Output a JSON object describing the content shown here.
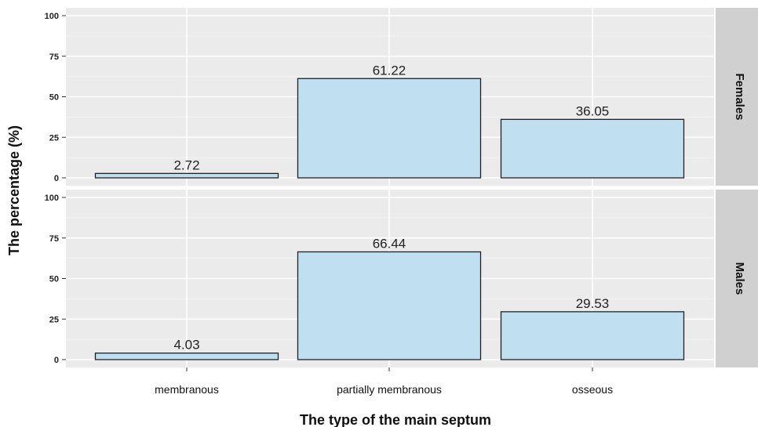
{
  "chart_data": {
    "type": "bar",
    "xlabel": "The type of the main septum",
    "ylabel": "The percentage (%)",
    "categories": [
      "membranous",
      "partially membranous",
      "osseous"
    ],
    "ylim": [
      0,
      100
    ],
    "yticks": [
      0,
      25,
      50,
      75,
      100
    ],
    "grid": true,
    "bar_fill": "#c0dff0",
    "bar_stroke": "#222222",
    "panel_bg": "#ebebeb",
    "strip_bg": "#d0d0d0",
    "facets": [
      {
        "name": "Females",
        "values": [
          2.72,
          61.22,
          36.05
        ],
        "labels": [
          "2.72",
          "61.22",
          "36.05"
        ]
      },
      {
        "name": "Males",
        "values": [
          4.03,
          66.44,
          29.53
        ],
        "labels": [
          "4.03",
          "66.44",
          "29.53"
        ]
      }
    ]
  }
}
